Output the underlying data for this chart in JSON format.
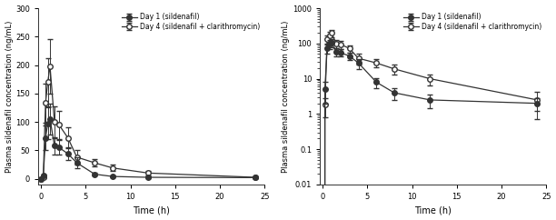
{
  "time": [
    0,
    0.25,
    0.5,
    0.75,
    1.0,
    1.5,
    2.0,
    3.0,
    4.0,
    6.0,
    8.0,
    12.0,
    24.0
  ],
  "day1_mean": [
    0,
    5.0,
    72.0,
    97.0,
    105.0,
    58.0,
    55.0,
    44.0,
    28.0,
    8.0,
    4.0,
    2.5,
    2.0
  ],
  "day1_err": [
    0,
    3.0,
    22.0,
    28.0,
    27.0,
    15.0,
    13.0,
    11.0,
    9.0,
    2.5,
    1.5,
    1.0,
    0.8
  ],
  "day4_mean": [
    0,
    1.8,
    133.0,
    170.0,
    198.0,
    100.0,
    95.0,
    72.0,
    38.0,
    28.0,
    19.0,
    10.0,
    2.5
  ],
  "day4_err": [
    0,
    1.0,
    35.0,
    42.0,
    48.0,
    28.0,
    25.0,
    18.0,
    13.0,
    7.0,
    5.5,
    3.5,
    1.8
  ],
  "ylabel": "Plasma sildenafil concentration (ng/mL)",
  "xlabel": "Time (h)",
  "legend_day1": "Day 1 (sildenafil)",
  "legend_day4": "Day 4 (sildenafil + clarithromycin)",
  "linear_ylim": [
    -10,
    300
  ],
  "linear_yticks": [
    0,
    50,
    100,
    150,
    200,
    250,
    300
  ],
  "log_ylim": [
    0.01,
    1000
  ],
  "log_yticks": [
    0.01,
    0.1,
    1,
    10,
    100,
    1000
  ],
  "xlim_linear": [
    -0.3,
    25
  ],
  "xlim_log": [
    -0.3,
    25
  ],
  "xticks": [
    0,
    5,
    10,
    15,
    20,
    25
  ],
  "color": "#333333",
  "bg_color": "#ffffff",
  "marker_size": 4,
  "line_width": 0.9,
  "err_lw": 0.7,
  "capsize": 2
}
